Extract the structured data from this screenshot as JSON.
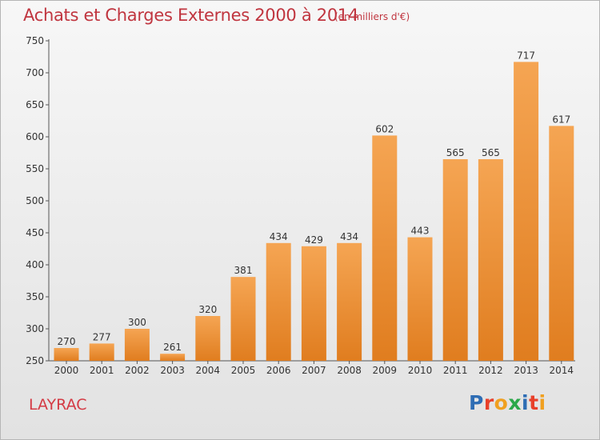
{
  "header": {
    "title": "Achats et Charges Externes 2000 à 2014",
    "unit": "(en milliers d'€)"
  },
  "footer": {
    "place": "LAYRAC",
    "brand": "Proxiti",
    "brand_colors": [
      "#2e6db4",
      "#e8402a",
      "#f0a020",
      "#2aa84a",
      "#2e6db4",
      "#e8402a",
      "#f0a020"
    ]
  },
  "colors": {
    "bar_light": "#f5a553",
    "bar_dark": "#e07d1f",
    "title": "#c0353f"
  },
  "chart_data": {
    "type": "bar",
    "title": "Achats et Charges Externes 2000 à 2014",
    "subtitle": "(en milliers d'€)",
    "xlabel": "",
    "ylabel": "",
    "categories": [
      "2000",
      "2001",
      "2002",
      "2003",
      "2004",
      "2005",
      "2006",
      "2007",
      "2008",
      "2009",
      "2010",
      "2011",
      "2012",
      "2013",
      "2014"
    ],
    "values": [
      270,
      277,
      300,
      261,
      320,
      381,
      434,
      429,
      434,
      602,
      443,
      565,
      565,
      717,
      617
    ],
    "ylim": [
      250,
      750
    ],
    "yticks": [
      250,
      300,
      350,
      400,
      450,
      500,
      550,
      600,
      650,
      700,
      750
    ],
    "grid": false,
    "data_labels": true
  }
}
